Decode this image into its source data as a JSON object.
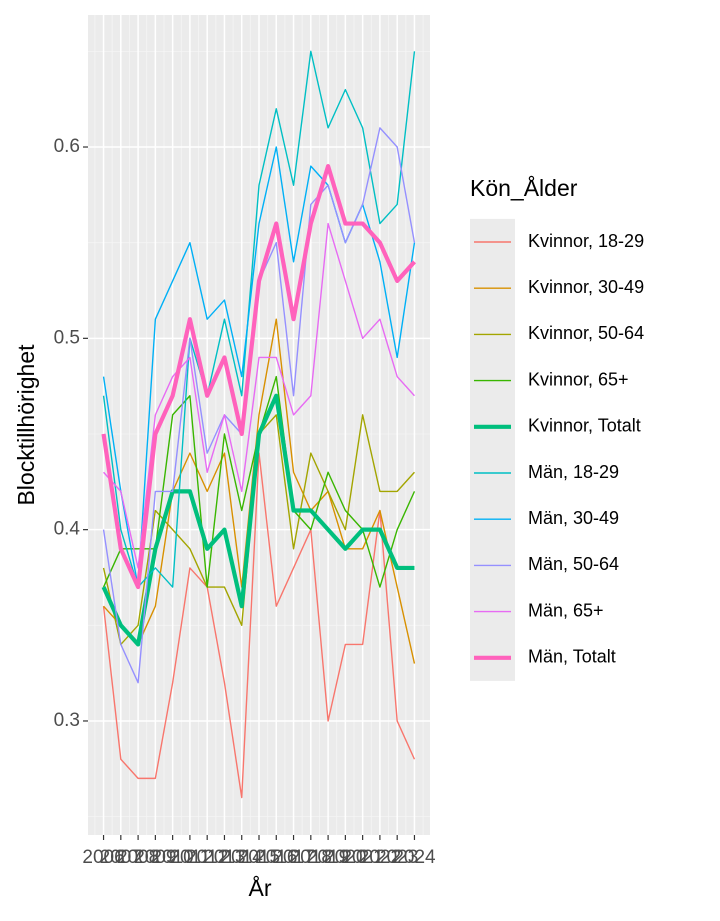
{
  "chart_data": {
    "type": "line",
    "x_label": "År",
    "y_label": "Blocktillhörighet",
    "legend_title": "Kön_Ålder",
    "legend_position": "right",
    "grid": true,
    "x": [
      2006,
      2007,
      2008,
      2009,
      2010,
      2011,
      2012,
      2013,
      2014,
      2015,
      2016,
      2017,
      2018,
      2019,
      2020,
      2021,
      2022,
      2023,
      2024
    ],
    "xlim": [
      2005.1,
      2024.9
    ],
    "xticks": [
      2006,
      2007,
      2008,
      2009,
      2010,
      2011,
      2012,
      2013,
      2014,
      2015,
      2016,
      2017,
      2018,
      2019,
      2020,
      2021,
      2022,
      2023,
      2024
    ],
    "ylim": [
      0.2404,
      0.669
    ],
    "yticks": [
      0.3,
      0.4,
      0.5,
      0.6
    ],
    "series": [
      {
        "name": "Kvinnor, 18-29",
        "color": "#F8766D",
        "line_width": 1,
        "values": [
          0.36,
          0.28,
          0.27,
          0.27,
          0.32,
          0.38,
          0.37,
          0.32,
          0.26,
          0.44,
          0.36,
          0.38,
          0.4,
          0.3,
          0.34,
          0.34,
          0.41,
          0.3,
          0.28
        ]
      },
      {
        "name": "Kvinnor, 30-49",
        "color": "#D89000",
        "line_width": 1,
        "values": [
          0.36,
          0.35,
          0.34,
          0.36,
          0.42,
          0.44,
          0.42,
          0.44,
          0.37,
          0.46,
          0.51,
          0.43,
          0.41,
          0.42,
          0.39,
          0.39,
          0.41,
          0.37,
          0.33
        ]
      },
      {
        "name": "Kvinnor, 50-64",
        "color": "#A3A500",
        "line_width": 1,
        "values": [
          0.38,
          0.34,
          0.35,
          0.41,
          0.4,
          0.39,
          0.37,
          0.37,
          0.35,
          0.45,
          0.46,
          0.39,
          0.44,
          0.42,
          0.4,
          0.46,
          0.42,
          0.42,
          0.43
        ]
      },
      {
        "name": "Kvinnor, 65+",
        "color": "#39B600",
        "line_width": 1,
        "values": [
          0.37,
          0.39,
          0.39,
          0.39,
          0.46,
          0.47,
          0.37,
          0.45,
          0.41,
          0.45,
          0.48,
          0.41,
          0.4,
          0.43,
          0.41,
          0.4,
          0.37,
          0.4,
          0.42
        ]
      },
      {
        "name": "Kvinnor, Totalt",
        "color": "#00BF7D",
        "line_width": 3,
        "values": [
          0.37,
          0.35,
          0.34,
          0.39,
          0.42,
          0.42,
          0.39,
          0.4,
          0.36,
          0.45,
          0.47,
          0.41,
          0.41,
          0.4,
          0.39,
          0.4,
          0.4,
          0.38,
          0.38
        ]
      },
      {
        "name": "Män, 18-29",
        "color": "#00BFC4",
        "line_width": 1,
        "values": [
          0.47,
          0.4,
          0.37,
          0.38,
          0.37,
          0.5,
          0.47,
          0.51,
          0.47,
          0.58,
          0.62,
          0.58,
          0.65,
          0.61,
          0.63,
          0.61,
          0.56,
          0.57,
          0.65
        ]
      },
      {
        "name": "Män, 30-49",
        "color": "#00B0F6",
        "line_width": 1,
        "values": [
          0.48,
          0.42,
          0.37,
          0.51,
          0.53,
          0.55,
          0.51,
          0.52,
          0.48,
          0.56,
          0.6,
          0.54,
          0.59,
          0.58,
          0.55,
          0.57,
          0.54,
          0.49,
          0.55
        ]
      },
      {
        "name": "Män, 50-64",
        "color": "#9590FF",
        "line_width": 1,
        "values": [
          0.4,
          0.34,
          0.32,
          0.42,
          0.42,
          0.5,
          0.44,
          0.46,
          0.45,
          0.53,
          0.55,
          0.47,
          0.57,
          0.58,
          0.55,
          0.57,
          0.61,
          0.6,
          0.55
        ]
      },
      {
        "name": "Män, 65+",
        "color": "#E76BF3",
        "line_width": 1,
        "values": [
          0.43,
          0.42,
          0.38,
          0.46,
          0.48,
          0.49,
          0.43,
          0.46,
          0.42,
          0.49,
          0.49,
          0.46,
          0.47,
          0.56,
          0.53,
          0.5,
          0.51,
          0.48,
          0.47
        ]
      },
      {
        "name": "Män, Totalt",
        "color": "#FF62BC",
        "line_width": 3,
        "values": [
          0.45,
          0.39,
          0.37,
          0.45,
          0.47,
          0.51,
          0.47,
          0.49,
          0.45,
          0.53,
          0.56,
          0.51,
          0.56,
          0.59,
          0.56,
          0.56,
          0.55,
          0.53,
          0.54
        ]
      }
    ]
  }
}
